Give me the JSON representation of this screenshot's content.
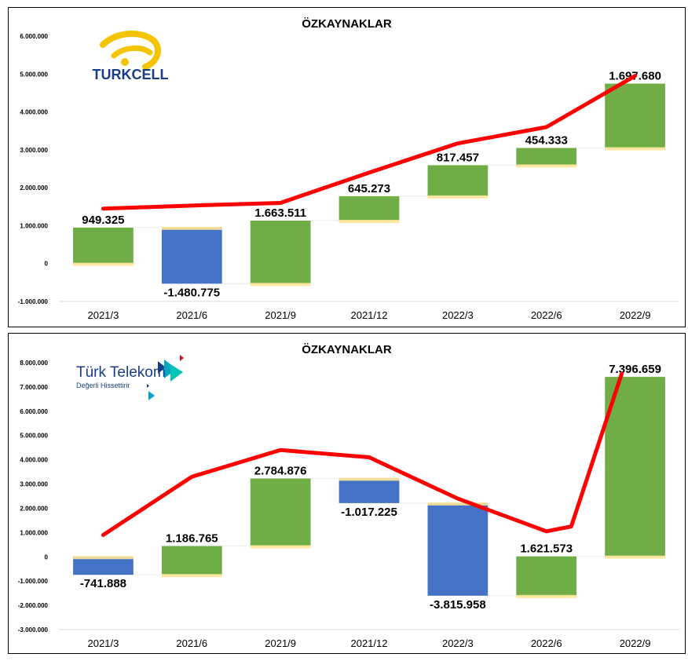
{
  "charts": [
    {
      "chart_data": {
        "type": "waterfall",
        "title": "ÖZKAYNAKLAR",
        "categories": [
          "2021/3",
          "2021/6",
          "2021/9",
          "2021/12",
          "2022/3",
          "2022/6",
          "2022/9"
        ],
        "changes": [
          949325,
          -1480775,
          1663511,
          645273,
          817457,
          454333,
          1697680
        ],
        "labels": [
          "949.325",
          "-1.480.775",
          "1.663.511",
          "645.273",
          "817.457",
          "454.333",
          "1.697.680"
        ],
        "line_values": [
          1450000,
          1530000,
          1600000,
          2400000,
          3170000,
          3600000,
          4950000
        ],
        "y_ticks": [
          "6.000.000",
          "5.000.000",
          "4.000.000",
          "3.000.000",
          "2.000.000",
          "1.000.000",
          "0",
          "-1.000.000"
        ],
        "ylim": [
          -1000000,
          6000000
        ],
        "colors": {
          "increase": "#70AD47",
          "decrease": "#4472C4",
          "line": "#FF0000",
          "connector": "#FFE699"
        }
      },
      "logo": {
        "name": "turkcell-logo",
        "text": "TURKCELL"
      }
    },
    {
      "chart_data": {
        "type": "waterfall",
        "title": "ÖZKAYNAKLAR",
        "categories": [
          "2021/3",
          "2021/6",
          "2021/9",
          "2021/12",
          "2022/3",
          "2022/6",
          "2022/9"
        ],
        "changes": [
          -741888,
          1186765,
          2784876,
          -1017225,
          -3815958,
          1621573,
          7396659
        ],
        "labels": [
          "-741.888",
          "1.186.765",
          "2.784.876",
          "-1.017.225",
          "-3.815.958",
          "1.621.573",
          "7.396.659"
        ],
        "line_values": [
          900000,
          3300000,
          4400000,
          4100000,
          2400000,
          1050000,
          1250000,
          7550000
        ],
        "line_categories": [
          0,
          1,
          2,
          3,
          4,
          5,
          5.28,
          5.85
        ],
        "y_ticks": [
          "8.000.000",
          "7.000.000",
          "6.000.000",
          "5.000.000",
          "4.000.000",
          "3.000.000",
          "2.000.000",
          "1.000.000",
          "0",
          "-1.000.000",
          "-2.000.000",
          "-3.000.000"
        ],
        "ylim": [
          -3000000,
          8000000
        ],
        "colors": {
          "increase": "#70AD47",
          "decrease": "#4472C4",
          "line": "#FF0000",
          "connector": "#FFE699"
        }
      },
      "logo": {
        "name": "turk-telekom-logo",
        "text": "Türk Telekom",
        "subtext": "Değerli Hissettirir"
      }
    }
  ]
}
